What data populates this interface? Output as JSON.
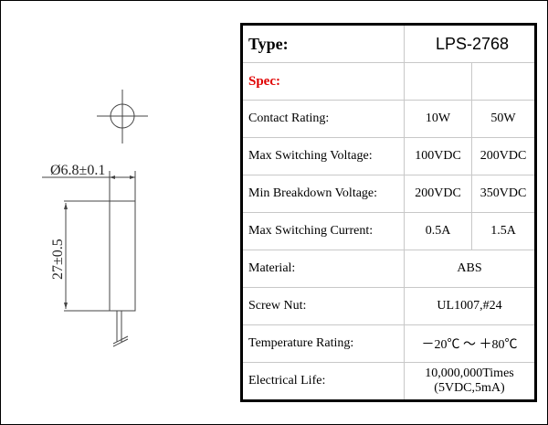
{
  "drawing": {
    "diameter_label": "Ø6.8±0.1",
    "length_label": "27±0.5"
  },
  "table": {
    "type_label": "Type:",
    "type_value": "LPS-2768",
    "spec_label": "Spec:",
    "spec_color": "#e00000",
    "rows": [
      {
        "label": "Contact Rating:",
        "v1": "10W",
        "v2": "50W"
      },
      {
        "label": "Max Switching Voltage:",
        "v1": "100VDC",
        "v2": "200VDC"
      },
      {
        "label": "Min Breakdown Voltage:",
        "v1": "200VDC",
        "v2": "350VDC"
      },
      {
        "label": "Max Switching Current:",
        "v1": "0.5A",
        "v2": "1.5A"
      }
    ],
    "merged_rows": [
      {
        "label": "Material:",
        "value": "ABS"
      },
      {
        "label": "Screw Nut:",
        "value": "UL1007,#24"
      },
      {
        "label": "Temperature Rating:",
        "value": "－20℃ ～ ＋80℃"
      }
    ],
    "life_label": "Electrical Life:",
    "life_value_1": "10,000,000Times",
    "life_value_2": "(5VDC,5mA)"
  }
}
